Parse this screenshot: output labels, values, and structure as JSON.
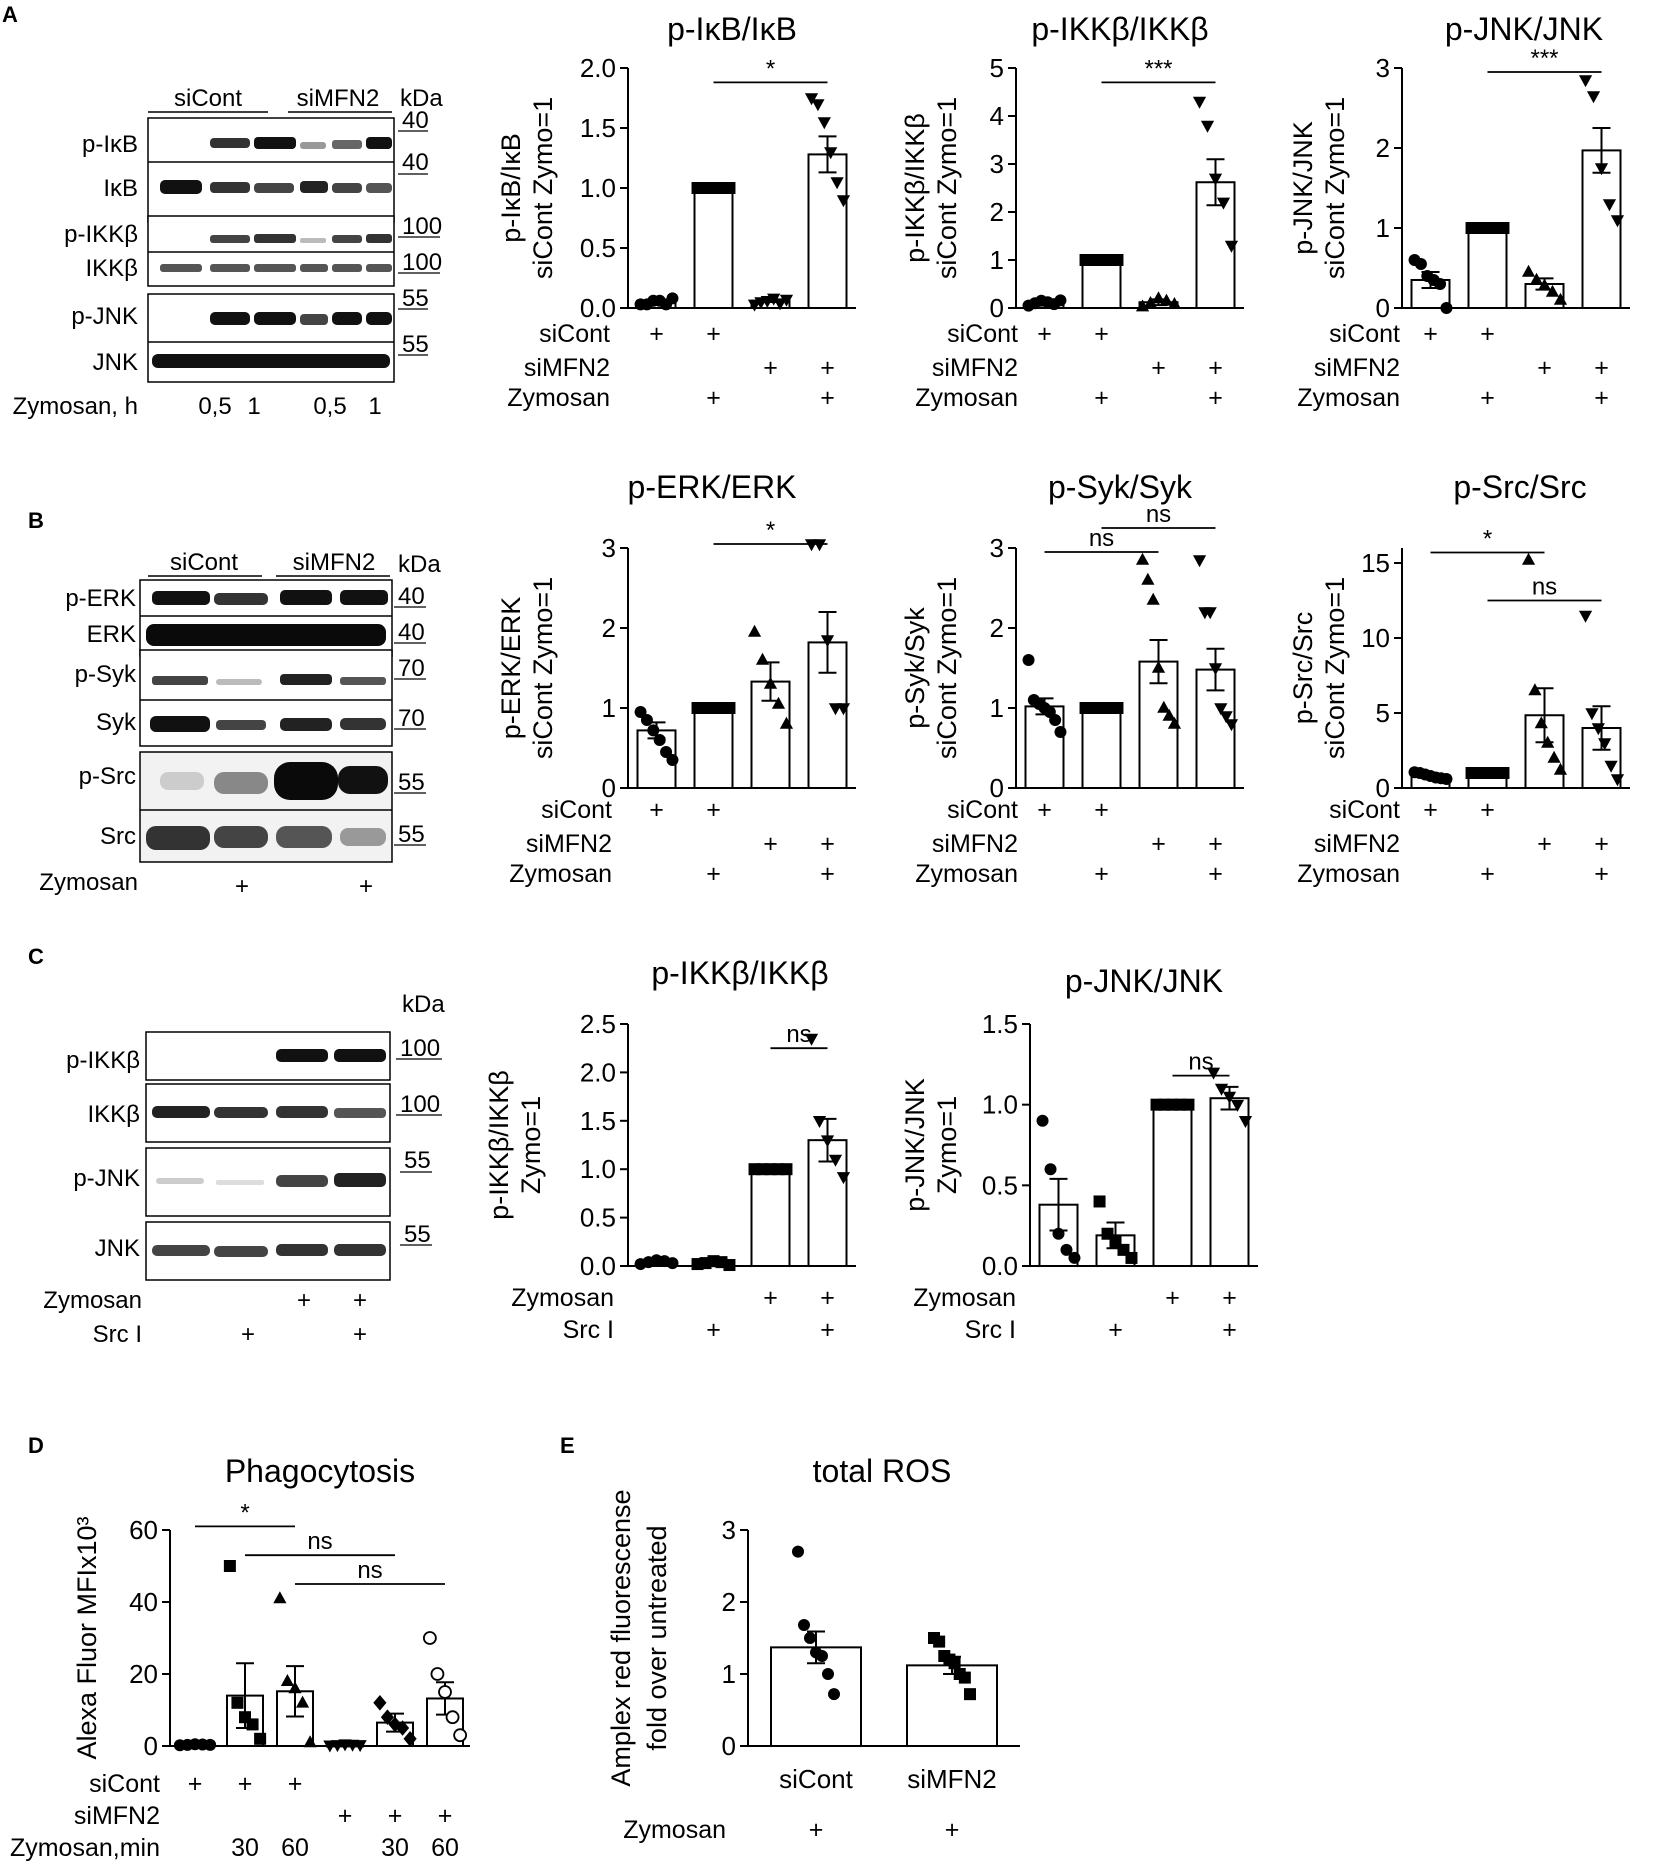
{
  "panels": {
    "A": {
      "letter": "A",
      "blot": {
        "groups": [
          "siCont",
          "siMFN2"
        ],
        "unit": "kDa",
        "bands": [
          {
            "label": "p-IκB",
            "mw": "40"
          },
          {
            "label": "IκB",
            "mw": "40"
          },
          {
            "label": "p-IKKβ",
            "mw": "100"
          },
          {
            "label": "IKKβ",
            "mw": "100"
          },
          {
            "label": "p-JNK",
            "mw": "55"
          },
          {
            "label": "JNK",
            "mw": "55"
          }
        ],
        "bottom_rows": [
          {
            "label": "Zymosan, h",
            "marks": [
              "",
              "0,5",
              "1",
              "",
              "0,5",
              "1"
            ]
          }
        ]
      }
    },
    "B": {
      "letter": "B",
      "blot": {
        "groups": [
          "siCont",
          "siMFN2"
        ],
        "unit": "kDa",
        "bands": [
          {
            "label": "p-ERK",
            "mw": "40"
          },
          {
            "label": "ERK",
            "mw": "40"
          },
          {
            "label": "p-Syk",
            "mw": "70"
          },
          {
            "label": "Syk",
            "mw": "70"
          },
          {
            "label": "p-Src",
            "mw": "55"
          },
          {
            "label": "Src",
            "mw": "55"
          }
        ],
        "bottom_rows": [
          {
            "label": "Zymosan",
            "marks": [
              "",
              "+",
              "",
              "+"
            ]
          }
        ]
      }
    },
    "C": {
      "letter": "C",
      "blot": {
        "groups": [],
        "unit": "kDa",
        "bands": [
          {
            "label": "p-IKKβ",
            "mw": "100"
          },
          {
            "label": "IKKβ",
            "mw": "100"
          },
          {
            "label": "p-JNK",
            "mw": "55"
          },
          {
            "label": "JNK",
            "mw": "55"
          }
        ],
        "bottom_rows": [
          {
            "label": "Zymosan",
            "marks": [
              "",
              "",
              "+",
              "+"
            ]
          },
          {
            "label": "Src I",
            "marks": [
              "",
              "+",
              "",
              "+"
            ]
          }
        ]
      }
    },
    "D": {
      "letter": "D"
    },
    "E": {
      "letter": "E"
    }
  },
  "chart_data": [
    {
      "id": "A1",
      "type": "bar",
      "title": "p-IκB/IκB",
      "ylabel": [
        "p-IκB/IκB",
        "siCont Zymo=1"
      ],
      "ylim": [
        0,
        2.0
      ],
      "yticks": [
        0.0,
        0.5,
        1.0,
        1.5,
        2.0
      ],
      "tick_format": 1,
      "bars": [
        0.06,
        1.0,
        0.06,
        1.28
      ],
      "errors": [
        0.01,
        0.0,
        0.01,
        0.15
      ],
      "markers": [
        "circle",
        "square",
        "triangle-down",
        "triangle-down"
      ],
      "points": [
        [
          0.03,
          0.03,
          0.06,
          0.06,
          0.03,
          0.08
        ],
        [
          1.0,
          1.0,
          1.0,
          1.0,
          1.0,
          1.0
        ],
        [
          0.03,
          0.05,
          0.06,
          0.08,
          0.04,
          0.07
        ],
        [
          1.75,
          1.7,
          1.55,
          1.3,
          1.05,
          0.9
        ]
      ],
      "conditions": [
        {
          "label": "siCont",
          "marks": [
            "+",
            "+",
            "",
            ""
          ]
        },
        {
          "label": "siMFN2",
          "marks": [
            "",
            "",
            "+",
            "+"
          ]
        },
        {
          "label": "Zymosan",
          "marks": [
            "",
            "+",
            "",
            "+"
          ]
        }
      ],
      "sig": [
        {
          "from": 1,
          "to": 3,
          "y": 1.88,
          "label": "*"
        }
      ]
    },
    {
      "id": "A2",
      "type": "bar",
      "title": "p-IKKβ/IKKβ",
      "ylabel": [
        "p-IKKβ/IKKβ",
        "siCont Zymo=1"
      ],
      "ylim": [
        0,
        5
      ],
      "yticks": [
        0,
        1,
        2,
        3,
        4,
        5
      ],
      "tick_format": 0,
      "bars": [
        0.12,
        1.0,
        0.12,
        2.62
      ],
      "errors": [
        0.04,
        0.0,
        0.06,
        0.48
      ],
      "markers": [
        "circle",
        "square",
        "triangle-up",
        "triangle-down"
      ],
      "points": [
        [
          0.05,
          0.1,
          0.15,
          0.12,
          0.08,
          0.16
        ],
        [
          1.0,
          1.0,
          1.0,
          1.0,
          1.0,
          1.0
        ],
        [
          0.03,
          0.1,
          0.2,
          0.15,
          0.08
        ],
        [
          4.3,
          3.8,
          2.7,
          2.2,
          1.3
        ]
      ],
      "conditions": [
        {
          "label": "siCont",
          "marks": [
            "+",
            "+",
            "",
            ""
          ]
        },
        {
          "label": "siMFN2",
          "marks": [
            "",
            "",
            "+",
            "+"
          ]
        },
        {
          "label": "Zymosan",
          "marks": [
            "",
            "+",
            "",
            "+"
          ]
        }
      ],
      "sig": [
        {
          "from": 1,
          "to": 3,
          "y": 4.7,
          "label": "***"
        }
      ]
    },
    {
      "id": "A3",
      "type": "bar",
      "title": "p-JNK/JNK",
      "ylabel": [
        "p-JNK/JNK",
        "siCont Zymo=1"
      ],
      "ylim": [
        0,
        3
      ],
      "yticks": [
        0,
        1,
        2,
        3
      ],
      "tick_format": 0,
      "bars": [
        0.35,
        1.0,
        0.3,
        1.97
      ],
      "errors": [
        0.1,
        0.0,
        0.07,
        0.28
      ],
      "markers": [
        "circle",
        "square",
        "triangle-up",
        "triangle-down"
      ],
      "points": [
        [
          0.6,
          0.55,
          0.4,
          0.35,
          0.3,
          0.0
        ],
        [
          1.0,
          1.0,
          1.0,
          1.0,
          1.0,
          1.0
        ],
        [
          0.45,
          0.35,
          0.28,
          0.2,
          0.1
        ],
        [
          2.85,
          2.65,
          1.75,
          1.3,
          1.1
        ]
      ],
      "conditions": [
        {
          "label": "siCont",
          "marks": [
            "+",
            "+",
            "",
            ""
          ]
        },
        {
          "label": "siMFN2",
          "marks": [
            "",
            "",
            "+",
            "+"
          ]
        },
        {
          "label": "Zymosan",
          "marks": [
            "",
            "+",
            "",
            "+"
          ]
        }
      ],
      "sig": [
        {
          "from": 1,
          "to": 3,
          "y": 2.95,
          "label": "***"
        }
      ]
    },
    {
      "id": "B1",
      "type": "bar",
      "title": "p-ERK/ERK",
      "ylabel": [
        "p-ERK/ERK",
        "siCont Zymo=1"
      ],
      "ylim": [
        0,
        3
      ],
      "yticks": [
        0,
        1,
        2,
        3
      ],
      "tick_format": 0,
      "bars": [
        0.72,
        1.0,
        1.33,
        1.82
      ],
      "errors": [
        0.1,
        0.0,
        0.24,
        0.38
      ],
      "markers": [
        "circle",
        "square",
        "triangle-up",
        "triangle-down"
      ],
      "points": [
        [
          0.95,
          0.85,
          0.72,
          0.6,
          0.45,
          0.35
        ],
        [
          1.0,
          1.0,
          1.0,
          1.0,
          1.0,
          1.0
        ],
        [
          1.95,
          1.6,
          1.3,
          1.05,
          0.8
        ],
        [
          3.05,
          3.05,
          1.85,
          1.0,
          1.0
        ]
      ],
      "conditions": [
        {
          "label": "siCont",
          "marks": [
            "+",
            "+",
            "",
            ""
          ]
        },
        {
          "label": "siMFN2",
          "marks": [
            "",
            "",
            "+",
            "+"
          ]
        },
        {
          "label": "Zymosan",
          "marks": [
            "",
            "+",
            "",
            "+"
          ]
        }
      ],
      "sig": [
        {
          "from": 1,
          "to": 3,
          "y": 3.05,
          "label": "*"
        }
      ]
    },
    {
      "id": "B2",
      "type": "bar",
      "title": "p-Syk/Syk",
      "ylabel": [
        "p-Syk/Syk",
        "siCont Zymo=1"
      ],
      "ylim": [
        0,
        3
      ],
      "yticks": [
        0,
        1,
        2,
        3
      ],
      "tick_format": 0,
      "bars": [
        1.02,
        1.0,
        1.58,
        1.48
      ],
      "errors": [
        0.1,
        0.0,
        0.27,
        0.26
      ],
      "markers": [
        "circle",
        "square",
        "triangle-up",
        "triangle-down"
      ],
      "points": [
        [
          1.6,
          1.1,
          1.05,
          1.0,
          0.95,
          0.85,
          0.7
        ],
        [
          1.0,
          1.0,
          1.0,
          1.0,
          1.0,
          1.0,
          1.0
        ],
        [
          2.85,
          2.6,
          2.35,
          1.5,
          1.0,
          0.9,
          0.8
        ],
        [
          2.85,
          2.2,
          2.2,
          1.5,
          1.0,
          0.9,
          0.8
        ]
      ],
      "conditions": [
        {
          "label": "siCont",
          "marks": [
            "+",
            "+",
            "",
            ""
          ]
        },
        {
          "label": "siMFN2",
          "marks": [
            "",
            "",
            "+",
            "+"
          ]
        },
        {
          "label": "Zymosan",
          "marks": [
            "",
            "+",
            "",
            "+"
          ]
        }
      ],
      "sig": [
        {
          "from": 0,
          "to": 2,
          "y": 2.95,
          "label": "ns"
        },
        {
          "from": 1,
          "to": 3,
          "y": 3.25,
          "label": "ns"
        }
      ]
    },
    {
      "id": "B3",
      "type": "bar",
      "title": "p-Src/Src",
      "ylabel": [
        "p-Src/Src",
        "siCont Zymo=1"
      ],
      "ylim": [
        0,
        16
      ],
      "yticks": [
        0,
        5,
        10,
        15
      ],
      "tick_format": 0,
      "bars": [
        0.85,
        1.0,
        4.85,
        4.0
      ],
      "errors": [
        0.1,
        0.0,
        1.8,
        1.45
      ],
      "markers": [
        "circle",
        "square",
        "triangle-up",
        "triangle-down"
      ],
      "points": [
        [
          1.05,
          1.0,
          0.9,
          0.8,
          0.7,
          0.65,
          0.6
        ],
        [
          1.0,
          1.0,
          1.0,
          1.0,
          1.0,
          1.0,
          1.0
        ],
        [
          15.2,
          6.5,
          4.3,
          3.0,
          2.0,
          1.2
        ],
        [
          11.5,
          5.0,
          4.0,
          3.0,
          1.5,
          0.6
        ]
      ],
      "conditions": [
        {
          "label": "siCont",
          "marks": [
            "+",
            "+",
            "",
            ""
          ]
        },
        {
          "label": "siMFN2",
          "marks": [
            "",
            "",
            "+",
            "+"
          ]
        },
        {
          "label": "Zymosan",
          "marks": [
            "",
            "+",
            "",
            "+"
          ]
        }
      ],
      "sig": [
        {
          "from": 0,
          "to": 2,
          "y": 15.7,
          "label": "*"
        },
        {
          "from": 1,
          "to": 3,
          "y": 12.5,
          "label": "ns"
        }
      ]
    },
    {
      "id": "C1",
      "type": "bar",
      "title": "p-IKKβ/IKKβ",
      "ylabel": [
        "p-IKKβ/IKKβ",
        "Zymo=1"
      ],
      "ylim": [
        0,
        2.5
      ],
      "yticks": [
        0.0,
        0.5,
        1.0,
        1.5,
        2.0,
        2.5
      ],
      "tick_format": 1,
      "bars": [
        0.04,
        0.03,
        1.0,
        1.3
      ],
      "errors": [
        0.01,
        0.01,
        0.0,
        0.22
      ],
      "markers": [
        "circle",
        "square",
        "square",
        "triangle-down"
      ],
      "points": [
        [
          0.02,
          0.04,
          0.06,
          0.05,
          0.03
        ],
        [
          0.02,
          0.03,
          0.05,
          0.04,
          0.01
        ],
        [
          1.0,
          1.0,
          1.0,
          1.0,
          1.0
        ],
        [
          2.35,
          1.5,
          1.3,
          1.1,
          0.92
        ]
      ],
      "conditions": [
        {
          "label": "Zymosan",
          "marks": [
            "",
            "",
            "+",
            "+"
          ]
        },
        {
          "label": "Src I",
          "marks": [
            "",
            "+",
            "",
            "+"
          ]
        }
      ],
      "sig": [
        {
          "from": 2,
          "to": 3,
          "y": 2.25,
          "label": "ns"
        }
      ]
    },
    {
      "id": "C2",
      "type": "bar",
      "title": "p-JNK/JNK",
      "ylabel": [
        "p-JNK/JNK",
        "Zymo=1"
      ],
      "ylim": [
        0,
        1.5
      ],
      "yticks": [
        0.0,
        0.5,
        1.0,
        1.5
      ],
      "tick_format": 1,
      "bars": [
        0.38,
        0.19,
        1.0,
        1.04
      ],
      "errors": [
        0.16,
        0.08,
        0.0,
        0.07
      ],
      "markers": [
        "circle",
        "square",
        "square",
        "triangle-down"
      ],
      "points": [
        [
          0.9,
          0.6,
          0.2,
          0.1,
          0.05
        ],
        [
          0.4,
          0.2,
          0.15,
          0.1,
          0.05
        ],
        [
          1.0,
          1.0,
          1.0,
          1.0,
          1.0
        ],
        [
          1.2,
          1.1,
          1.05,
          1.0,
          0.9
        ]
      ],
      "conditions": [
        {
          "label": "Zymosan",
          "marks": [
            "",
            "",
            "+",
            "+"
          ]
        },
        {
          "label": "Src I",
          "marks": [
            "",
            "+",
            "",
            "+"
          ]
        }
      ],
      "sig": [
        {
          "from": 2,
          "to": 3,
          "y": 1.18,
          "label": "ns"
        }
      ]
    },
    {
      "id": "D",
      "type": "bar",
      "title": "Phagocytosis",
      "ylabel": [
        "Alexa Fluor MFIx10³"
      ],
      "ylim": [
        0,
        60
      ],
      "yticks": [
        0,
        20,
        40,
        60
      ],
      "tick_format": 0,
      "bars": [
        0.3,
        14.0,
        15.2,
        0.3,
        6.5,
        13.2
      ],
      "errors": [
        0.1,
        9.0,
        7.0,
        0.1,
        2.5,
        4.5
      ],
      "markers": [
        "circle",
        "square",
        "triangle-up",
        "triangle-down",
        "diamond",
        "circle-open"
      ],
      "points": [
        [
          0.2,
          0.3,
          0.5,
          0.4,
          0.3
        ],
        [
          50,
          12,
          8,
          6,
          2
        ],
        [
          41,
          18,
          16,
          12,
          1
        ],
        [
          0.2,
          0.3,
          0.5,
          0.4,
          0.3
        ],
        [
          12,
          8,
          6,
          5,
          2
        ],
        [
          30,
          20,
          15,
          8,
          3
        ]
      ],
      "conditions": [
        {
          "label": "siCont",
          "marks": [
            "+",
            "+",
            "+",
            "",
            "",
            ""
          ]
        },
        {
          "label": "siMFN2",
          "marks": [
            "",
            "",
            "",
            "+",
            "+",
            "+"
          ]
        },
        {
          "label": "Zymosan,min",
          "marks": [
            "",
            "30",
            "60",
            "",
            "30",
            "60"
          ]
        }
      ],
      "sig": [
        {
          "from": 0,
          "to": 2,
          "y": 61,
          "label": "*"
        },
        {
          "from": 1,
          "to": 4,
          "y": 53,
          "label": "ns"
        },
        {
          "from": 2,
          "to": 5,
          "y": 45,
          "label": "ns"
        }
      ]
    },
    {
      "id": "E",
      "type": "bar",
      "title": "total ROS",
      "ylabel": [
        "Amplex red fluorescense",
        "fold over untreated"
      ],
      "ylim": [
        0,
        3
      ],
      "yticks": [
        0,
        1,
        2,
        3
      ],
      "tick_format": 0,
      "bars": [
        1.37,
        1.12
      ],
      "errors": [
        0.22,
        0.12
      ],
      "markers": [
        "circle",
        "square"
      ],
      "points": [
        [
          2.7,
          1.68,
          1.5,
          1.3,
          1.25,
          1.0,
          0.72
        ],
        [
          1.5,
          1.45,
          1.25,
          1.2,
          1.15,
          1.0,
          0.95,
          0.72
        ]
      ],
      "categories": [
        "siCont",
        "siMFN2"
      ],
      "conditions": [
        {
          "label": "Zymosan",
          "marks": [
            "+",
            "+"
          ]
        }
      ],
      "sig": []
    }
  ]
}
